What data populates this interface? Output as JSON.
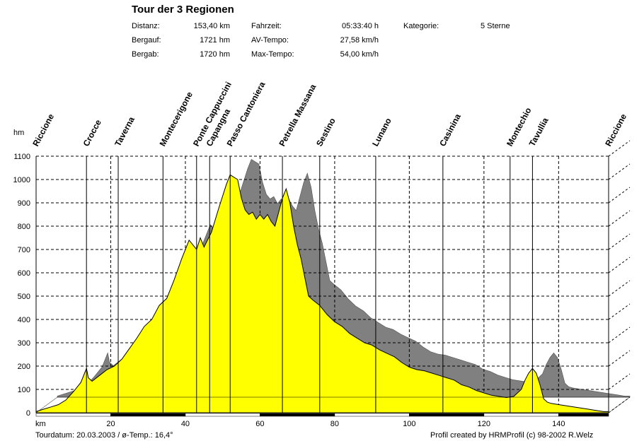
{
  "header": {
    "title": "Tour der 3  Regionen",
    "stats": [
      {
        "label": "Distanz:",
        "value": "153,40 km"
      },
      {
        "label": "Bergauf:",
        "value": "1721 hm"
      },
      {
        "label": "Bergab:",
        "value": "1720 hm"
      },
      {
        "label": "Fahrzeit:",
        "value": "05:33:40 h"
      },
      {
        "label": "AV-Tempo:",
        "value": "27,58 km/h"
      },
      {
        "label": "Max-Tempo:",
        "value": "54,00 km/h"
      },
      {
        "label": "Kategorie:",
        "value": "5 Sterne"
      }
    ]
  },
  "footer": {
    "left": "Tourdatum: 20.03.2003  /  ø-Temp.: 16,4°",
    "right": "Profil created by HRMProfil (c) 98-2002 R.Welz"
  },
  "colors": {
    "profile_fill": "#ffff00",
    "shadow": "#808080",
    "axis_bar": "#000000"
  },
  "chart_data": {
    "type": "area",
    "xlabel": "km",
    "ylabel": "hm",
    "xlim": [
      0,
      153.4
    ],
    "ylim": [
      0,
      1100
    ],
    "xticks": [
      20,
      40,
      60,
      80,
      100,
      120,
      140
    ],
    "yticks": [
      0,
      100,
      200,
      300,
      400,
      500,
      600,
      700,
      800,
      900,
      1000,
      1100
    ],
    "grid": true,
    "profile": [
      [
        0,
        5
      ],
      [
        2,
        15
      ],
      [
        4,
        25
      ],
      [
        6,
        35
      ],
      [
        8,
        55
      ],
      [
        10,
        90
      ],
      [
        12,
        130
      ],
      [
        13.5,
        190
      ],
      [
        14,
        150
      ],
      [
        15,
        135
      ],
      [
        17,
        160
      ],
      [
        19,
        185
      ],
      [
        21,
        200
      ],
      [
        23,
        230
      ],
      [
        25,
        275
      ],
      [
        27,
        320
      ],
      [
        29,
        370
      ],
      [
        31,
        400
      ],
      [
        33,
        460
      ],
      [
        35,
        490
      ],
      [
        37,
        570
      ],
      [
        39,
        660
      ],
      [
        41,
        740
      ],
      [
        43,
        700
      ],
      [
        44,
        750
      ],
      [
        45,
        710
      ],
      [
        47,
        775
      ],
      [
        49,
        880
      ],
      [
        51,
        980
      ],
      [
        52,
        1020
      ],
      [
        54,
        1000
      ],
      [
        55,
        920
      ],
      [
        56,
        870
      ],
      [
        57,
        850
      ],
      [
        58,
        860
      ],
      [
        59,
        830
      ],
      [
        60,
        850
      ],
      [
        61,
        830
      ],
      [
        62,
        850
      ],
      [
        63,
        820
      ],
      [
        64,
        800
      ],
      [
        65,
        860
      ],
      [
        66,
        920
      ],
      [
        67,
        960
      ],
      [
        68,
        900
      ],
      [
        69,
        800
      ],
      [
        70,
        720
      ],
      [
        71,
        660
      ],
      [
        72,
        580
      ],
      [
        73,
        500
      ],
      [
        74,
        485
      ],
      [
        76,
        460
      ],
      [
        78,
        420
      ],
      [
        80,
        390
      ],
      [
        82,
        370
      ],
      [
        84,
        340
      ],
      [
        86,
        320
      ],
      [
        88,
        300
      ],
      [
        90,
        290
      ],
      [
        92,
        270
      ],
      [
        94,
        255
      ],
      [
        96,
        240
      ],
      [
        98,
        215
      ],
      [
        100,
        195
      ],
      [
        102,
        185
      ],
      [
        104,
        180
      ],
      [
        106,
        170
      ],
      [
        108,
        160
      ],
      [
        110,
        150
      ],
      [
        112,
        140
      ],
      [
        114,
        120
      ],
      [
        116,
        110
      ],
      [
        118,
        95
      ],
      [
        120,
        85
      ],
      [
        122,
        75
      ],
      [
        124,
        70
      ],
      [
        126,
        65
      ],
      [
        128,
        70
      ],
      [
        130,
        100
      ],
      [
        131,
        140
      ],
      [
        132,
        170
      ],
      [
        133,
        190
      ],
      [
        134,
        170
      ],
      [
        135,
        120
      ],
      [
        136,
        60
      ],
      [
        137,
        45
      ],
      [
        138,
        40
      ],
      [
        140,
        35
      ],
      [
        142,
        30
      ],
      [
        144,
        25
      ],
      [
        146,
        20
      ],
      [
        148,
        15
      ],
      [
        150,
        10
      ],
      [
        152,
        5
      ],
      [
        153.4,
        5
      ]
    ],
    "waypoints": [
      {
        "name": "Riccione",
        "km": 0
      },
      {
        "name": "Crocce",
        "km": 13.5
      },
      {
        "name": "Taverna",
        "km": 22
      },
      {
        "name": "Montecerigone",
        "km": 34
      },
      {
        "name": "Ponte Cappuccini",
        "km": 43
      },
      {
        "name": "Capangna",
        "km": 46.5
      },
      {
        "name": "Passo Cantoniera",
        "km": 52
      },
      {
        "name": "Petrella Massana",
        "km": 66
      },
      {
        "name": "Sestino",
        "km": 76
      },
      {
        "name": "Lunano",
        "km": 91
      },
      {
        "name": "Casinina",
        "km": 109
      },
      {
        "name": "Montechio",
        "km": 127
      },
      {
        "name": "Tavullia",
        "km": 133
      },
      {
        "name": "Riccione",
        "km": 153.4
      }
    ]
  }
}
